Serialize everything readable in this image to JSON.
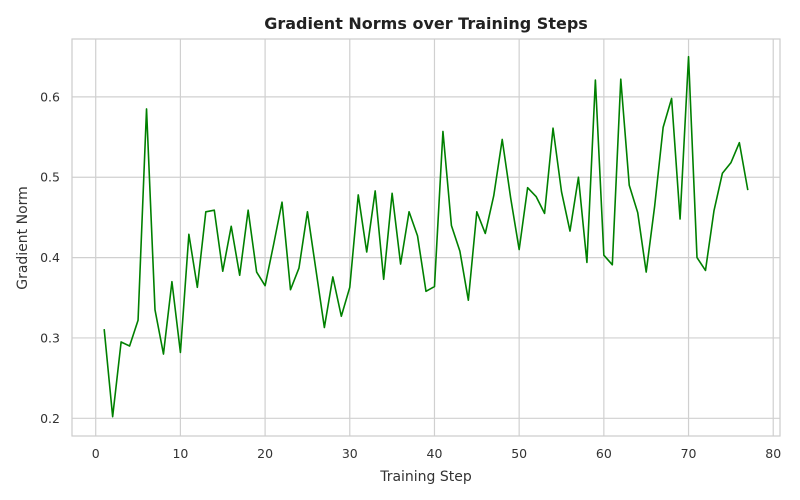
{
  "chart_data": {
    "type": "line",
    "title": "Gradient Norms over Training Steps",
    "xlabel": "Training Step",
    "ylabel": "Gradient Norm",
    "xlim": [
      -2.8,
      80.8
    ],
    "ylim": [
      0.178,
      0.672
    ],
    "xticks": [
      0,
      10,
      20,
      30,
      40,
      50,
      60,
      70,
      80
    ],
    "yticks": [
      0.2,
      0.3,
      0.4,
      0.5,
      0.6
    ],
    "grid": true,
    "legend": "none",
    "series": [
      {
        "color": "#008000",
        "x": [
          1,
          2,
          3,
          4,
          5,
          6,
          7,
          8,
          9,
          10,
          11,
          12,
          13,
          14,
          15,
          16,
          17,
          18,
          19,
          20,
          21,
          22,
          23,
          24,
          25,
          26,
          27,
          28,
          29,
          30,
          31,
          32,
          33,
          34,
          35,
          36,
          37,
          38,
          39,
          40,
          41,
          42,
          43,
          44,
          45,
          46,
          47,
          48,
          49,
          50,
          51,
          52,
          53,
          54,
          55,
          56,
          57,
          58,
          59,
          60,
          61,
          62,
          63,
          64,
          65,
          66,
          67,
          68,
          69,
          70,
          71,
          72,
          73,
          74,
          75,
          76,
          77
        ],
        "y": [
          0.311,
          0.202,
          0.295,
          0.29,
          0.322,
          0.585,
          0.335,
          0.28,
          0.37,
          0.282,
          0.429,
          0.363,
          0.457,
          0.459,
          0.383,
          0.439,
          0.378,
          0.459,
          0.382,
          0.365,
          0.416,
          0.469,
          0.36,
          0.387,
          0.457,
          0.385,
          0.313,
          0.376,
          0.327,
          0.363,
          0.478,
          0.407,
          0.483,
          0.373,
          0.48,
          0.392,
          0.457,
          0.427,
          0.358,
          0.364,
          0.557,
          0.44,
          0.408,
          0.347,
          0.457,
          0.43,
          0.477,
          0.547,
          0.474,
          0.41,
          0.487,
          0.476,
          0.455,
          0.561,
          0.482,
          0.433,
          0.5,
          0.394,
          0.621,
          0.403,
          0.391,
          0.622,
          0.49,
          0.456,
          0.382,
          0.464,
          0.562,
          0.598,
          0.448,
          0.65,
          0.4,
          0.384,
          0.458,
          0.505,
          0.518,
          0.543,
          0.484
        ]
      }
    ]
  }
}
